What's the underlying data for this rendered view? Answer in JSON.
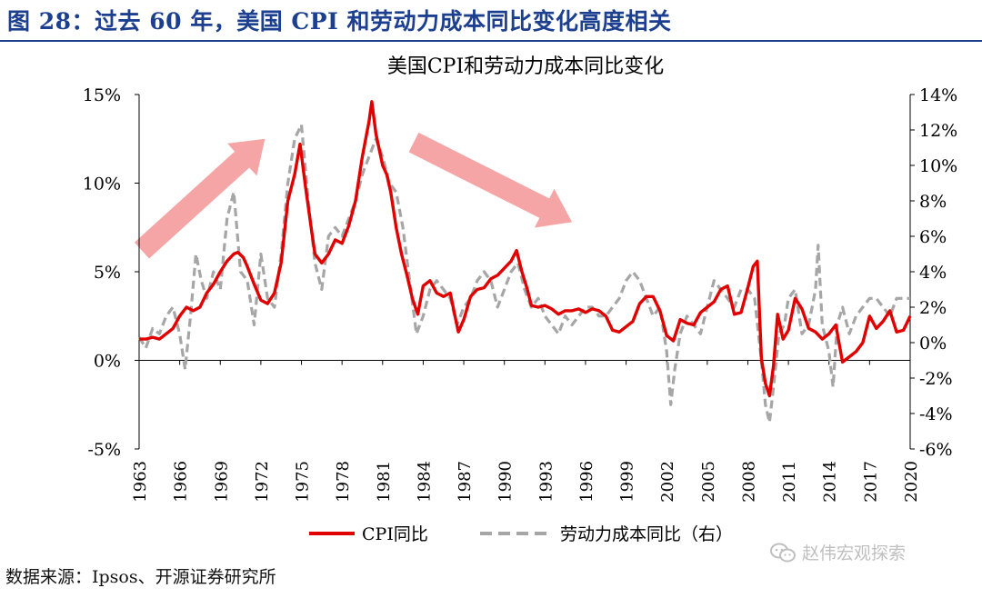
{
  "figure": {
    "title": "图 28：过去 60 年，美国 CPI 和劳动力成本同比变化高度相关",
    "source": "数据来源：Ipsos、开源证券研究所",
    "watermark": "赵伟宏观探索",
    "watermark_icon": "wechat-icon"
  },
  "colors": {
    "title": "#1c3f8f",
    "cpi": "#e00000",
    "labor": "#a6a6a6",
    "arrow": "#f4a0a0"
  },
  "chart_data": {
    "type": "line",
    "title": "美国CPI和劳动力成本同比变化",
    "x_ticks": [
      "1963",
      "1966",
      "1969",
      "1972",
      "1975",
      "1978",
      "1981",
      "1984",
      "1987",
      "1990",
      "1993",
      "1996",
      "1999",
      "2002",
      "2005",
      "2008",
      "2011",
      "2014",
      "2017",
      "2020"
    ],
    "xlim": [
      1963,
      2020
    ],
    "y_left": {
      "ylim": [
        -5,
        15
      ],
      "ticks": [
        "-5%",
        "0%",
        "5%",
        "10%",
        "15%"
      ],
      "tick_values": [
        -5,
        0,
        5,
        10,
        15
      ]
    },
    "y_right": {
      "ylim": [
        -6,
        14
      ],
      "ticks": [
        "-6%",
        "-4%",
        "-2%",
        "0%",
        "2%",
        "4%",
        "6%",
        "8%",
        "10%",
        "12%",
        "14%"
      ],
      "tick_values": [
        -6,
        -4,
        -2,
        0,
        2,
        4,
        6,
        8,
        10,
        12,
        14
      ]
    },
    "annotations": [
      {
        "type": "arrow",
        "direction": "up",
        "from": [
          1963.2,
          6.2
        ],
        "to": [
          1972.3,
          12.5
        ]
      },
      {
        "type": "arrow",
        "direction": "down",
        "from": [
          1983.3,
          12.3
        ],
        "to": [
          1995.0,
          7.8
        ]
      }
    ],
    "series": [
      {
        "name": "CPI同比",
        "axis": "left",
        "x": [
          1963.0,
          1963.5,
          1964.0,
          1964.5,
          1965.0,
          1965.5,
          1966.0,
          1966.5,
          1967.0,
          1967.5,
          1968.0,
          1968.5,
          1969.0,
          1969.5,
          1970.0,
          1970.3,
          1970.7,
          1971.0,
          1971.5,
          1972.0,
          1972.5,
          1973.0,
          1973.5,
          1974.0,
          1974.5,
          1974.9,
          1975.3,
          1975.7,
          1976.0,
          1976.5,
          1977.0,
          1977.5,
          1978.0,
          1978.5,
          1979.0,
          1979.5,
          1980.0,
          1980.2,
          1980.5,
          1981.0,
          1981.3,
          1981.6,
          1982.0,
          1982.4,
          1982.8,
          1983.2,
          1983.6,
          1984.0,
          1984.5,
          1985.0,
          1985.5,
          1986.0,
          1986.3,
          1986.6,
          1987.0,
          1987.5,
          1988.0,
          1988.5,
          1989.0,
          1989.5,
          1990.0,
          1990.5,
          1990.9,
          1991.3,
          1991.7,
          1992.0,
          1992.5,
          1993.0,
          1993.5,
          1994.0,
          1994.5,
          1995.0,
          1995.5,
          1996.0,
          1996.5,
          1997.0,
          1997.5,
          1998.0,
          1998.5,
          1999.0,
          1999.5,
          2000.0,
          2000.5,
          2001.0,
          2001.5,
          2002.0,
          2002.5,
          2003.0,
          2003.5,
          2004.0,
          2004.5,
          2005.0,
          2005.5,
          2006.0,
          2006.5,
          2007.0,
          2007.5,
          2008.0,
          2008.4,
          2008.7,
          2009.0,
          2009.3,
          2009.6,
          2009.9,
          2010.2,
          2010.6,
          2011.0,
          2011.5,
          2012.0,
          2012.5,
          2013.0,
          2013.5,
          2014.0,
          2014.5,
          2015.0,
          2015.5,
          2016.0,
          2016.5,
          2017.0,
          2017.5,
          2018.0,
          2018.5,
          2019.0,
          2019.5,
          2020.0
        ],
        "values": [
          1.2,
          1.2,
          1.3,
          1.2,
          1.5,
          1.8,
          2.5,
          3.0,
          2.8,
          3.0,
          3.8,
          4.3,
          5.0,
          5.6,
          6.0,
          6.1,
          5.8,
          5.3,
          4.3,
          3.4,
          3.2,
          3.8,
          5.5,
          9.0,
          10.5,
          12.2,
          9.8,
          7.6,
          6.0,
          5.5,
          6.0,
          6.8,
          6.6,
          7.6,
          9.0,
          11.5,
          13.5,
          14.6,
          12.8,
          11.0,
          10.5,
          9.5,
          7.5,
          6.0,
          4.8,
          3.5,
          2.6,
          4.2,
          4.5,
          3.8,
          3.6,
          3.8,
          2.7,
          1.6,
          2.3,
          3.6,
          4.0,
          4.1,
          4.6,
          4.8,
          5.2,
          5.6,
          6.2,
          5.0,
          4.0,
          3.1,
          3.0,
          3.1,
          2.9,
          2.6,
          2.8,
          2.8,
          2.9,
          2.7,
          2.9,
          2.8,
          2.5,
          1.7,
          1.6,
          1.9,
          2.2,
          3.2,
          3.6,
          3.6,
          2.8,
          1.4,
          1.1,
          2.3,
          2.1,
          2.0,
          2.7,
          3.0,
          3.3,
          4.0,
          4.2,
          2.6,
          2.7,
          4.1,
          5.3,
          5.6,
          0.1,
          -1.3,
          -2.0,
          -0.3,
          2.6,
          1.2,
          1.7,
          3.5,
          2.9,
          1.8,
          1.6,
          1.2,
          1.5,
          2.0,
          -0.1,
          0.2,
          0.5,
          1.0,
          2.5,
          1.8,
          2.2,
          2.8,
          1.6,
          1.7,
          2.5
        ]
      },
      {
        "name": "劳动力成本同比（右）",
        "axis": "right",
        "x": [
          1963.0,
          1963.5,
          1964.0,
          1964.5,
          1965.0,
          1965.5,
          1966.0,
          1966.4,
          1966.8,
          1967.2,
          1967.6,
          1968.0,
          1968.5,
          1969.0,
          1969.5,
          1970.0,
          1970.5,
          1971.0,
          1971.5,
          1972.0,
          1972.5,
          1973.0,
          1973.5,
          1974.0,
          1974.5,
          1975.0,
          1975.5,
          1976.0,
          1976.5,
          1977.0,
          1977.5,
          1978.0,
          1978.5,
          1979.0,
          1979.5,
          1980.0,
          1980.5,
          1981.0,
          1981.5,
          1982.0,
          1982.5,
          1983.0,
          1983.5,
          1984.0,
          1984.5,
          1985.0,
          1985.5,
          1986.0,
          1986.5,
          1987.0,
          1987.5,
          1988.0,
          1988.5,
          1989.0,
          1989.5,
          1990.0,
          1990.5,
          1991.0,
          1991.5,
          1992.0,
          1992.5,
          1993.0,
          1993.5,
          1994.0,
          1994.5,
          1995.0,
          1995.5,
          1996.0,
          1996.5,
          1997.0,
          1997.5,
          1998.0,
          1998.5,
          1999.0,
          1999.5,
          2000.0,
          2000.5,
          2001.0,
          2001.5,
          2002.0,
          2002.3,
          2002.6,
          2003.0,
          2003.5,
          2004.0,
          2004.5,
          2005.0,
          2005.5,
          2006.0,
          2006.5,
          2007.0,
          2007.5,
          2008.0,
          2008.5,
          2009.0,
          2009.3,
          2009.6,
          2009.9,
          2010.3,
          2010.7,
          2011.0,
          2011.5,
          2012.0,
          2012.5,
          2013.0,
          2013.2,
          2013.5,
          2014.0,
          2014.3,
          2014.6,
          2015.0,
          2015.5,
          2016.0,
          2016.5,
          2017.0,
          2017.5,
          2018.0,
          2018.5,
          2019.0,
          2019.5,
          2020.0
        ],
        "values": [
          0.3,
          -0.3,
          0.8,
          0.5,
          1.5,
          2.0,
          0.5,
          -1.5,
          1.5,
          5.0,
          3.5,
          2.5,
          4.0,
          3.0,
          7.0,
          8.5,
          4.0,
          3.5,
          1.0,
          5.0,
          2.5,
          2.0,
          5.0,
          9.0,
          11.5,
          12.3,
          8.0,
          4.5,
          3.0,
          6.0,
          6.5,
          6.0,
          7.0,
          8.0,
          9.5,
          10.5,
          11.5,
          10.5,
          9.0,
          8.5,
          6.5,
          3.5,
          0.5,
          1.5,
          3.0,
          3.5,
          3.0,
          2.5,
          1.0,
          2.0,
          2.5,
          3.5,
          4.0,
          3.5,
          2.0,
          3.0,
          4.0,
          4.5,
          3.0,
          2.0,
          2.5,
          1.5,
          1.0,
          0.5,
          1.5,
          1.0,
          1.5,
          2.0,
          2.0,
          1.5,
          1.5,
          2.0,
          2.5,
          3.5,
          4.0,
          3.5,
          2.5,
          1.5,
          2.0,
          -0.5,
          -3.5,
          -1.5,
          0.5,
          1.5,
          1.0,
          0.5,
          2.0,
          3.5,
          3.0,
          2.5,
          2.0,
          3.0,
          3.0,
          2.5,
          -1.0,
          -3.5,
          -4.5,
          -2.5,
          0.5,
          1.0,
          2.5,
          3.0,
          0.5,
          1.0,
          3.0,
          5.5,
          1.0,
          -0.5,
          -2.5,
          1.0,
          2.0,
          0.5,
          1.5,
          2.0,
          2.5,
          2.5,
          2.0,
          1.5,
          2.5,
          2.5,
          2.5
        ]
      }
    ]
  }
}
